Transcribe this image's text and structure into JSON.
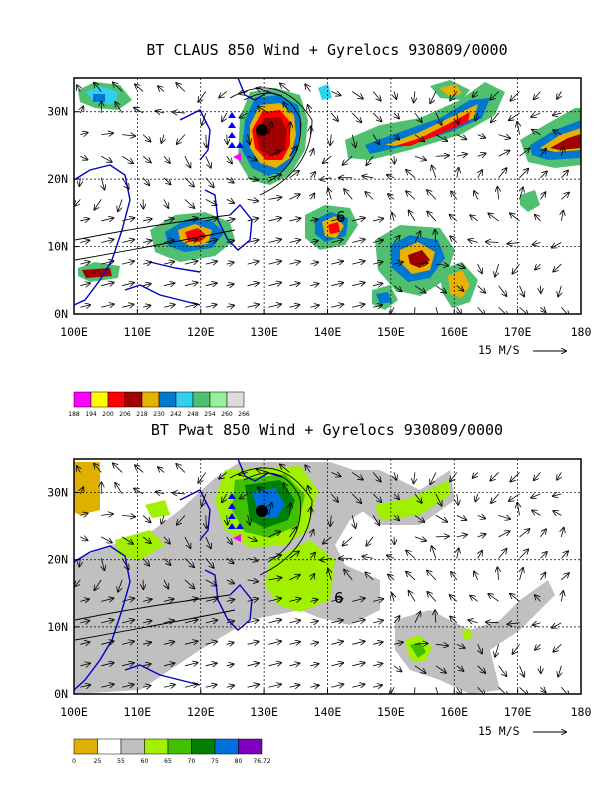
{
  "panels": [
    {
      "title": "BT CLAUS 850 Wind + Gyrelocs 930809/0000",
      "vector_scale_label": "15 M/S",
      "colorbar_labels": [
        "188",
        "194",
        "200",
        "206",
        "218",
        "230",
        "242",
        "248",
        "254",
        "260",
        "266"
      ],
      "colorbar_colors": [
        "#ff00ff",
        "#ffff00",
        "#ff0000",
        "#a00000",
        "#e8b000",
        "#0078d0",
        "#30d0f0",
        "#50c070",
        "#98f098",
        "#dcdcdc"
      ]
    },
    {
      "title": "BT Pwat 850 Wind + Gyrelocs 930809/0000",
      "vector_scale_label": "15 M/S",
      "colorbar_labels": [
        "0",
        "25",
        "55",
        "60",
        "65",
        "70",
        "75",
        "80",
        "76.72"
      ],
      "colorbar_colors": [
        "#e0b000",
        "#ffffff",
        "#c0c0c0",
        "#a0f000",
        "#40c000",
        "#008000",
        "#0070e0",
        "#8000c0"
      ]
    }
  ],
  "chart_data": [
    {
      "type": "map-contour",
      "title": "BT CLAUS 850 Wind + Gyrelocs 930809/0000",
      "x_ticks": [
        "100E",
        "110E",
        "120E",
        "130E",
        "140E",
        "150E",
        "160E",
        "170E",
        "180"
      ],
      "y_ticks": [
        "0N",
        "10N",
        "20N",
        "30N"
      ],
      "xlim": [
        100,
        180
      ],
      "ylim": [
        0,
        35
      ],
      "grid": true,
      "gyre_marker": {
        "lon": 140,
        "lat": 15,
        "label": "6"
      },
      "storm_center": {
        "lon": 129,
        "lat": 27
      }
    },
    {
      "type": "map-contour",
      "title": "BT Pwat 850 Wind + Gyrelocs 930809/0000",
      "x_ticks": [
        "100E",
        "110E",
        "120E",
        "130E",
        "140E",
        "150E",
        "160E",
        "170E",
        "180"
      ],
      "y_ticks": [
        "0N",
        "10N",
        "20N",
        "30N"
      ],
      "xlim": [
        100,
        180
      ],
      "ylim": [
        0,
        35
      ],
      "grid": true,
      "gyre_marker": {
        "lon": 140,
        "lat": 15,
        "label": "6"
      },
      "storm_center": {
        "lon": 129,
        "lat": 27
      }
    }
  ]
}
